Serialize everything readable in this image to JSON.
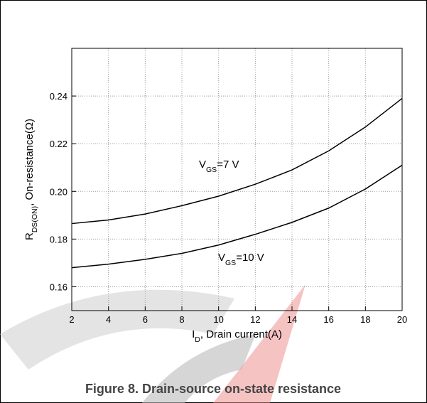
{
  "chart_data": {
    "type": "line",
    "caption": "Figure 8. Drain-source on-state resistance",
    "x_label": [
      "I",
      "D",
      ", Drain current(A)"
    ],
    "y_label": [
      "R",
      "DS(ON)",
      ", On-resistance(Ω)"
    ],
    "x": [
      2,
      4,
      6,
      8,
      10,
      12,
      14,
      16,
      18,
      20
    ],
    "series": [
      {
        "name": [
          "V",
          "GS",
          "=7 V"
        ],
        "color": "#000000",
        "values": [
          0.1865,
          0.188,
          0.1905,
          0.194,
          0.198,
          0.203,
          0.209,
          0.217,
          0.227,
          0.239
        ]
      },
      {
        "name": [
          "V",
          "GS",
          "=10 V"
        ],
        "color": "#000000",
        "values": [
          0.168,
          0.1695,
          0.1715,
          0.174,
          0.1775,
          0.182,
          0.187,
          0.193,
          0.201,
          0.211
        ]
      }
    ],
    "xlim": [
      2,
      20
    ],
    "xticks": [
      2,
      4,
      6,
      8,
      10,
      12,
      14,
      16,
      18,
      20
    ],
    "ylim": [
      0.15,
      0.26
    ],
    "yticks": [
      0.16,
      0.18,
      {
        "value": 0.2,
        "label": "0.20"
      },
      0.22,
      0.24
    ],
    "grid": true
  }
}
